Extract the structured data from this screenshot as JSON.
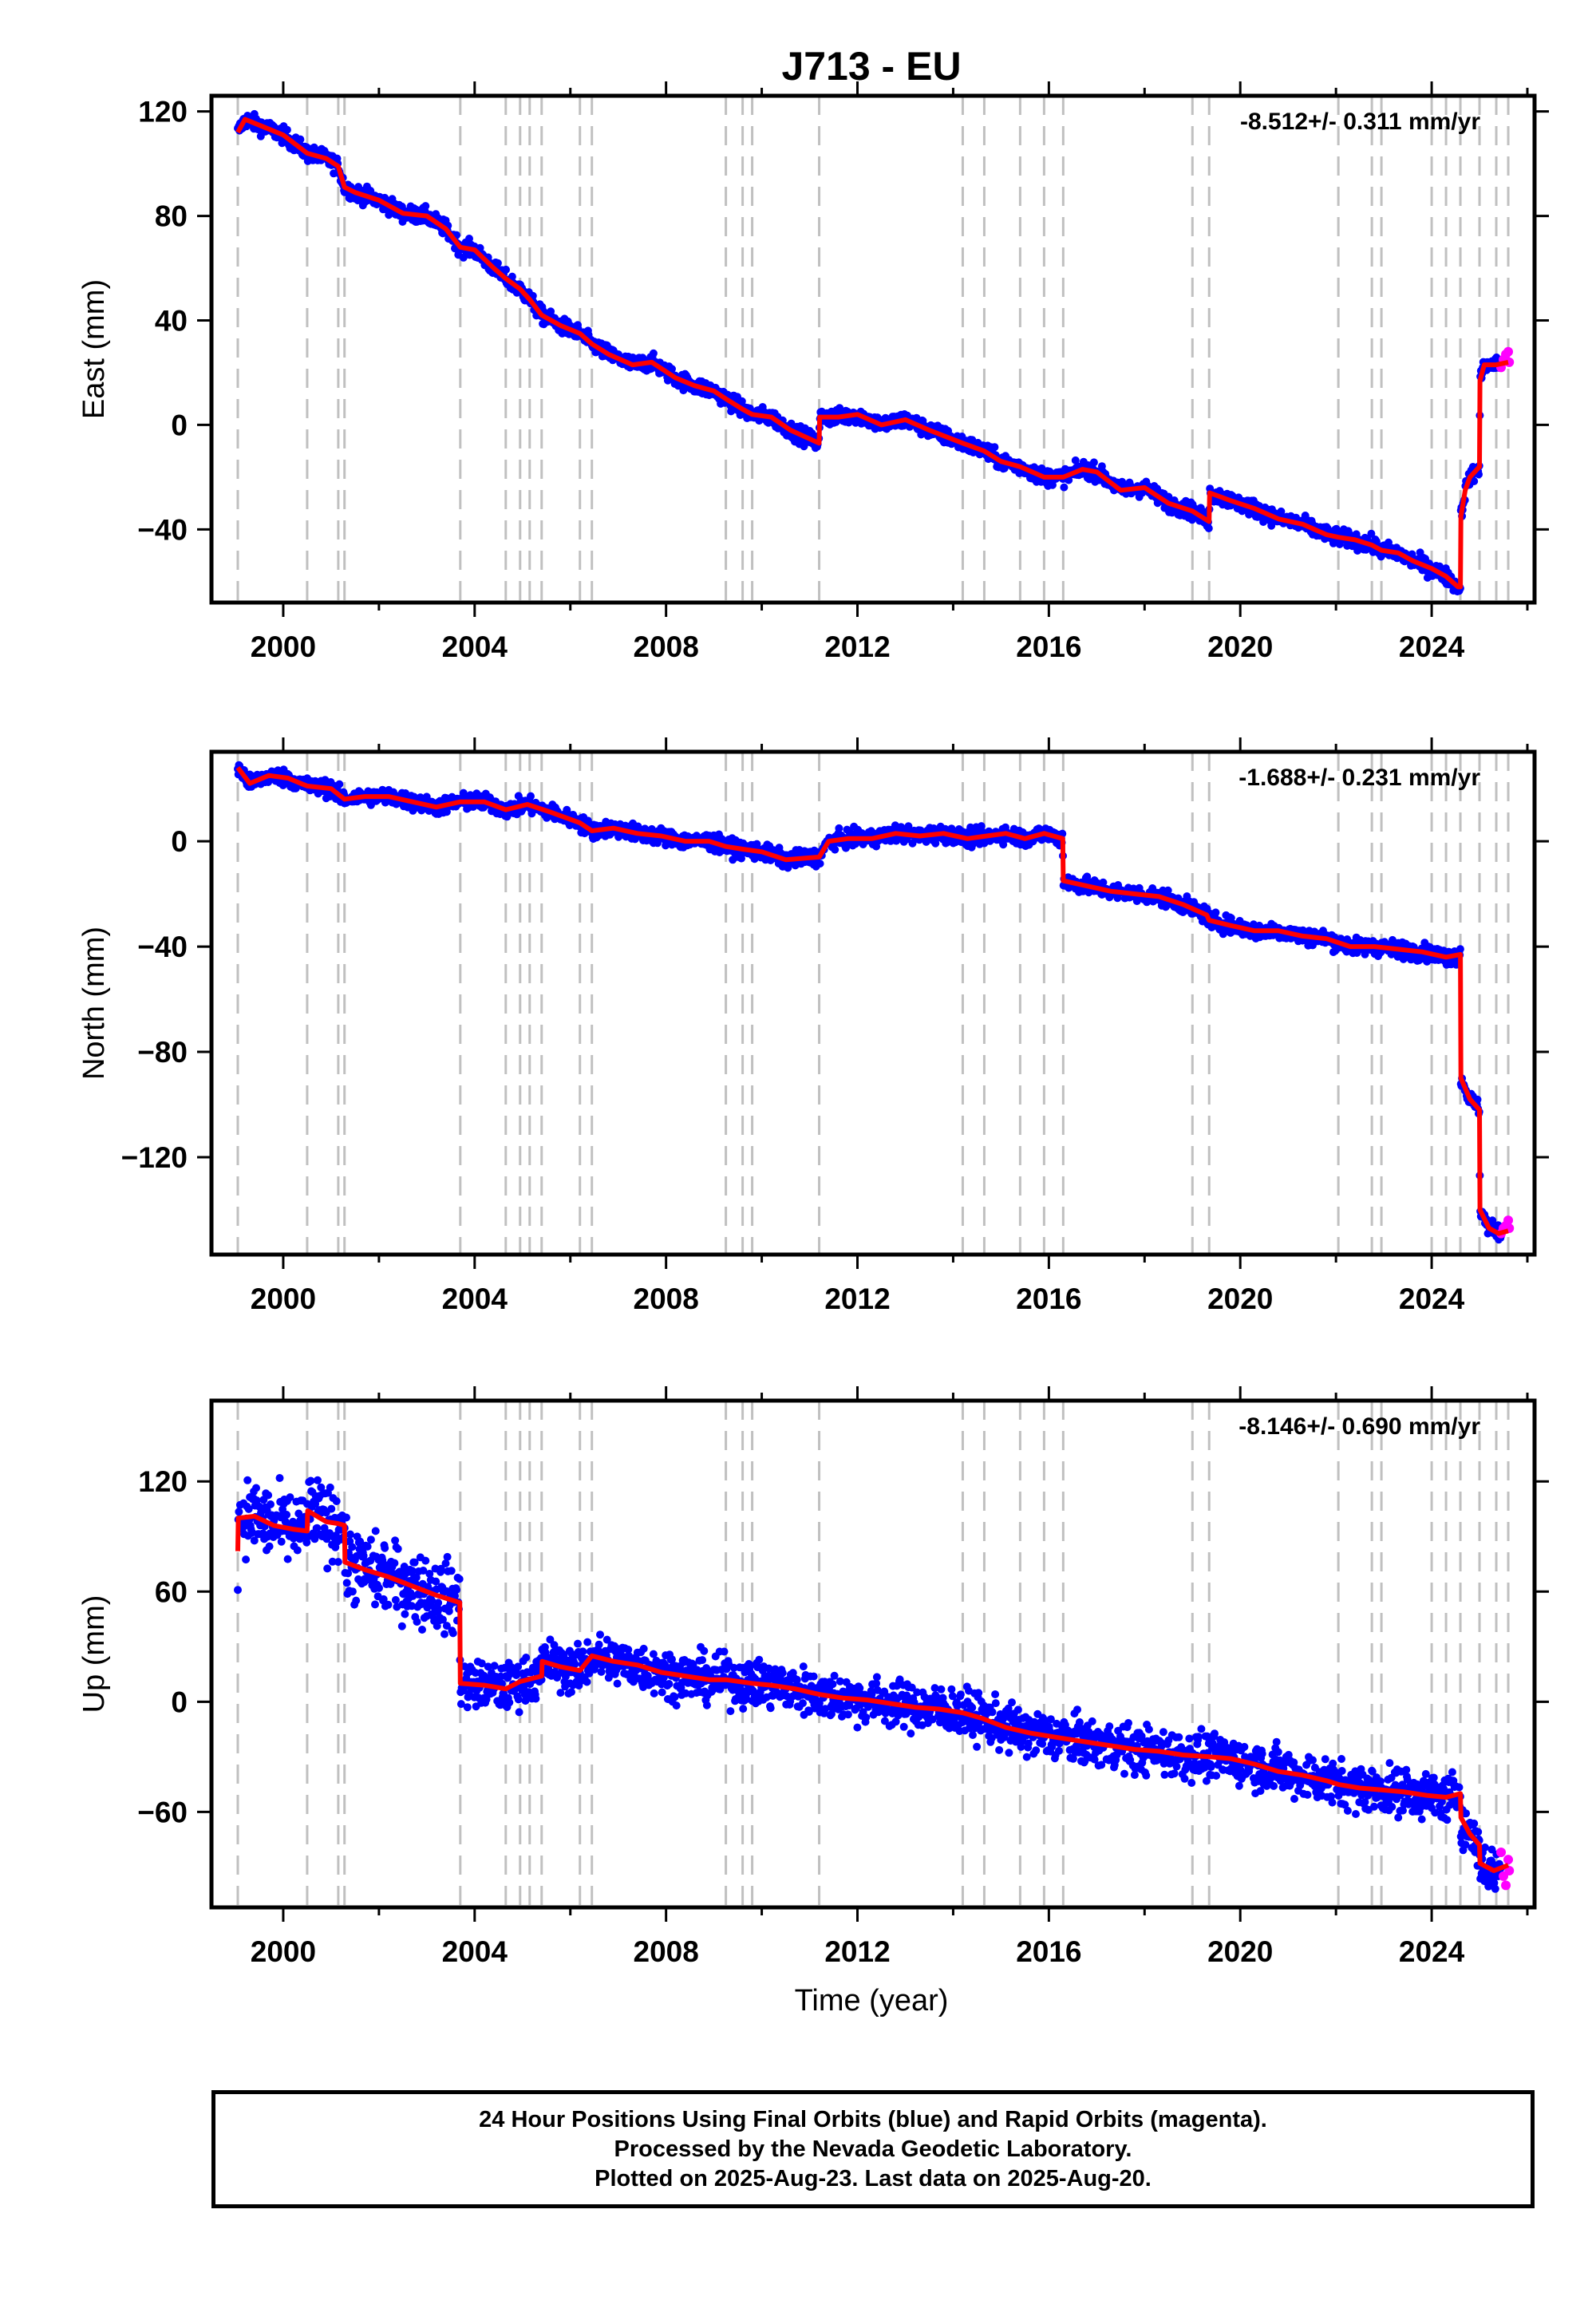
{
  "title": "J713 - EU",
  "xlabel": "Time (year)",
  "caption": {
    "line1": "24 Hour Positions Using Final Orbits (blue) and Rapid Orbits (magenta).",
    "line2": "Processed by the Nevada Geodetic Laboratory.",
    "line3": "Plotted on 2025-Aug-23. Last data on 2025-Aug-20."
  },
  "colors": {
    "final_orbits": "#0000ff",
    "rapid_orbits": "#ff00ff",
    "model": "#ff0000",
    "event_lines": "#c0c0c0"
  },
  "event_years": [
    1999.05,
    2000.5,
    2001.15,
    2001.28,
    2003.7,
    2004.65,
    2004.95,
    2005.15,
    2005.4,
    2006.2,
    2006.45,
    2009.25,
    2009.6,
    2009.8,
    2011.2,
    2014.2,
    2014.65,
    2015.4,
    2015.9,
    2016.3,
    2019.0,
    2019.35,
    2022.05,
    2022.75,
    2022.95,
    2024.0,
    2024.3,
    2024.6,
    2025.0,
    2025.35,
    2025.6
  ],
  "chart_data": [
    {
      "type": "scatter",
      "ylabel": "East (mm)",
      "rate_label": "-8.512+/- 0.311 mm/yr",
      "xlim": [
        1998.5,
        2026.15
      ],
      "ylim": [
        -68,
        126
      ],
      "yticks": [
        120,
        80,
        40,
        0,
        -40
      ],
      "ytick_labels": [
        "120",
        "80",
        "40",
        "0",
        "−40"
      ],
      "xticks": [
        2000,
        2004,
        2008,
        2012,
        2016,
        2020,
        2024
      ],
      "xtick_labels": [
        "2000",
        "2004",
        "2008",
        "2012",
        "2016",
        "2020",
        "2024"
      ],
      "model": [
        [
          1999.05,
          112
        ],
        [
          1999.2,
          117
        ],
        [
          1999.6,
          114
        ],
        [
          2000.0,
          111
        ],
        [
          2000.5,
          104
        ],
        [
          2000.9,
          102
        ],
        [
          2001.15,
          99
        ],
        [
          2001.28,
          91
        ],
        [
          2001.5,
          89
        ],
        [
          2002.0,
          86
        ],
        [
          2002.5,
          81
        ],
        [
          2003.0,
          80
        ],
        [
          2003.4,
          75
        ],
        [
          2003.7,
          68
        ],
        [
          2004.0,
          67
        ],
        [
          2004.4,
          60
        ],
        [
          2004.65,
          56
        ],
        [
          2004.95,
          52
        ],
        [
          2005.15,
          48
        ],
        [
          2005.4,
          42
        ],
        [
          2005.8,
          38
        ],
        [
          2006.2,
          35
        ],
        [
          2006.45,
          31
        ],
        [
          2006.8,
          27
        ],
        [
          2007.3,
          23
        ],
        [
          2007.7,
          24
        ],
        [
          2008.2,
          18
        ],
        [
          2008.6,
          15
        ],
        [
          2009.0,
          13
        ],
        [
          2009.25,
          10
        ],
        [
          2009.6,
          6
        ],
        [
          2009.8,
          4
        ],
        [
          2010.2,
          3
        ],
        [
          2010.6,
          -2
        ],
        [
          2011.2,
          -7
        ],
        [
          2011.21,
          3
        ],
        [
          2011.6,
          3
        ],
        [
          2012.0,
          4
        ],
        [
          2012.5,
          0
        ],
        [
          2013.0,
          2
        ],
        [
          2013.5,
          -2
        ],
        [
          2014.2,
          -7
        ],
        [
          2014.65,
          -10
        ],
        [
          2015.0,
          -14
        ],
        [
          2015.4,
          -16
        ],
        [
          2015.9,
          -20
        ],
        [
          2016.3,
          -20
        ],
        [
          2016.7,
          -17
        ],
        [
          2017.0,
          -18
        ],
        [
          2017.5,
          -25
        ],
        [
          2018.0,
          -24
        ],
        [
          2018.5,
          -30
        ],
        [
          2019.0,
          -33
        ],
        [
          2019.35,
          -37
        ],
        [
          2019.36,
          -26
        ],
        [
          2019.8,
          -29
        ],
        [
          2020.3,
          -32
        ],
        [
          2020.8,
          -36
        ],
        [
          2021.3,
          -38
        ],
        [
          2021.8,
          -42
        ],
        [
          2022.05,
          -43
        ],
        [
          2022.4,
          -44
        ],
        [
          2022.75,
          -46
        ],
        [
          2022.95,
          -48
        ],
        [
          2023.3,
          -49
        ],
        [
          2023.6,
          -52
        ],
        [
          2024.0,
          -55
        ],
        [
          2024.3,
          -58
        ],
        [
          2024.55,
          -62
        ],
        [
          2024.6,
          -62
        ],
        [
          2024.61,
          -35
        ],
        [
          2024.7,
          -25
        ],
        [
          2024.8,
          -20
        ],
        [
          2025.0,
          -16
        ],
        [
          2025.01,
          17
        ],
        [
          2025.1,
          23
        ],
        [
          2025.35,
          23
        ],
        [
          2025.6,
          24
        ]
      ],
      "rapid": [
        [
          2025.45,
          22
        ],
        [
          2025.5,
          25
        ],
        [
          2025.55,
          27
        ],
        [
          2025.6,
          28
        ],
        [
          2025.62,
          24
        ]
      ]
    },
    {
      "type": "scatter",
      "ylabel": "North (mm)",
      "rate_label": "-1.688+/- 0.231 mm/yr",
      "xlim": [
        1998.5,
        2026.15
      ],
      "ylim": [
        -157,
        34
      ],
      "yticks": [
        0,
        -40,
        -80,
        -120
      ],
      "ytick_labels": [
        "0",
        "−40",
        "−80",
        "−120"
      ],
      "xticks": [
        2000,
        2004,
        2008,
        2012,
        2016,
        2020,
        2024
      ],
      "xtick_labels": [
        "2000",
        "2004",
        "2008",
        "2012",
        "2016",
        "2020",
        "2024"
      ],
      "model": [
        [
          1999.05,
          28
        ],
        [
          1999.3,
          22
        ],
        [
          1999.7,
          25
        ],
        [
          2000.1,
          24
        ],
        [
          2000.5,
          21
        ],
        [
          2001.0,
          20
        ],
        [
          2001.28,
          16
        ],
        [
          2001.7,
          17
        ],
        [
          2002.2,
          17
        ],
        [
          2002.7,
          15
        ],
        [
          2003.2,
          13
        ],
        [
          2003.7,
          15
        ],
        [
          2004.2,
          15
        ],
        [
          2004.65,
          12
        ],
        [
          2005.1,
          14
        ],
        [
          2005.6,
          11
        ],
        [
          2006.2,
          7
        ],
        [
          2006.45,
          4
        ],
        [
          2006.9,
          5
        ],
        [
          2007.4,
          3
        ],
        [
          2007.9,
          2
        ],
        [
          2008.4,
          0
        ],
        [
          2008.9,
          0
        ],
        [
          2009.25,
          -2
        ],
        [
          2009.6,
          -3
        ],
        [
          2010.0,
          -4
        ],
        [
          2010.5,
          -7
        ],
        [
          2011.2,
          -6
        ],
        [
          2011.4,
          0
        ],
        [
          2011.8,
          1
        ],
        [
          2012.3,
          1
        ],
        [
          2012.8,
          3
        ],
        [
          2013.3,
          2
        ],
        [
          2013.8,
          3
        ],
        [
          2014.3,
          1
        ],
        [
          2014.7,
          2
        ],
        [
          2015.1,
          3
        ],
        [
          2015.5,
          1
        ],
        [
          2015.9,
          3
        ],
        [
          2016.29,
          1
        ],
        [
          2016.3,
          -15
        ],
        [
          2016.8,
          -17
        ],
        [
          2017.3,
          -19
        ],
        [
          2017.8,
          -20
        ],
        [
          2018.3,
          -21
        ],
        [
          2018.8,
          -24
        ],
        [
          2019.3,
          -28
        ],
        [
          2019.35,
          -30
        ],
        [
          2019.8,
          -32
        ],
        [
          2020.3,
          -34
        ],
        [
          2020.8,
          -34
        ],
        [
          2021.3,
          -36
        ],
        [
          2021.8,
          -37
        ],
        [
          2022.3,
          -40
        ],
        [
          2022.8,
          -40
        ],
        [
          2023.3,
          -41
        ],
        [
          2023.8,
          -42
        ],
        [
          2024.3,
          -44
        ],
        [
          2024.6,
          -43
        ],
        [
          2024.61,
          -90
        ],
        [
          2024.8,
          -98
        ],
        [
          2025.0,
          -102
        ],
        [
          2025.01,
          -140
        ],
        [
          2025.2,
          -147
        ],
        [
          2025.4,
          -149
        ],
        [
          2025.6,
          -148
        ]
      ],
      "rapid": [
        [
          2025.45,
          -149
        ],
        [
          2025.5,
          -147
        ],
        [
          2025.55,
          -146
        ],
        [
          2025.6,
          -144
        ],
        [
          2025.62,
          -147
        ]
      ]
    },
    {
      "type": "scatter",
      "ylabel": "Up (mm)",
      "xlabel": "Time (year)",
      "rate_label": "-8.146+/- 0.690 mm/yr",
      "xlim": [
        1998.5,
        2026.15
      ],
      "ylim": [
        -112,
        164
      ],
      "yticks": [
        120,
        60,
        0,
        -60
      ],
      "ytick_labels": [
        "120",
        "60",
        "0",
        "−60"
      ],
      "xticks": [
        2000,
        2004,
        2008,
        2012,
        2016,
        2020,
        2024
      ],
      "xtick_labels": [
        "2000",
        "2004",
        "2008",
        "2012",
        "2016",
        "2020",
        "2024"
      ],
      "model": [
        [
          1999.05,
          82
        ],
        [
          1999.06,
          100
        ],
        [
          1999.4,
          101
        ],
        [
          1999.8,
          96
        ],
        [
          2000.2,
          94
        ],
        [
          2000.5,
          93
        ],
        [
          2000.51,
          104
        ],
        [
          2000.9,
          98
        ],
        [
          2001.15,
          97
        ],
        [
          2001.28,
          96
        ],
        [
          2001.29,
          76
        ],
        [
          2001.7,
          72
        ],
        [
          2002.2,
          68
        ],
        [
          2002.7,
          63
        ],
        [
          2003.2,
          58
        ],
        [
          2003.69,
          54
        ],
        [
          2003.7,
          10
        ],
        [
          2004.2,
          9
        ],
        [
          2004.65,
          7
        ],
        [
          2004.95,
          11
        ],
        [
          2005.4,
          14
        ],
        [
          2005.41,
          22
        ],
        [
          2005.8,
          19
        ],
        [
          2006.2,
          17
        ],
        [
          2006.45,
          25
        ],
        [
          2006.9,
          22
        ],
        [
          2007.4,
          20
        ],
        [
          2007.9,
          16
        ],
        [
          2008.4,
          14
        ],
        [
          2008.9,
          12
        ],
        [
          2009.25,
          12
        ],
        [
          2009.8,
          10
        ],
        [
          2010.2,
          9
        ],
        [
          2010.7,
          7
        ],
        [
          2011.2,
          4
        ],
        [
          2011.7,
          2
        ],
        [
          2012.2,
          1
        ],
        [
          2012.7,
          -1
        ],
        [
          2013.2,
          -3
        ],
        [
          2013.7,
          -4
        ],
        [
          2014.2,
          -6
        ],
        [
          2014.6,
          -9
        ],
        [
          2015.1,
          -14
        ],
        [
          2015.6,
          -17
        ],
        [
          2016.3,
          -20
        ],
        [
          2016.8,
          -22
        ],
        [
          2017.3,
          -24
        ],
        [
          2017.8,
          -26
        ],
        [
          2018.3,
          -27
        ],
        [
          2018.8,
          -29
        ],
        [
          2019.35,
          -30
        ],
        [
          2019.8,
          -31
        ],
        [
          2020.3,
          -34
        ],
        [
          2020.8,
          -38
        ],
        [
          2021.3,
          -40
        ],
        [
          2021.8,
          -43
        ],
        [
          2022.05,
          -45
        ],
        [
          2022.5,
          -47
        ],
        [
          2022.95,
          -48
        ],
        [
          2023.4,
          -49
        ],
        [
          2023.9,
          -51
        ],
        [
          2024.3,
          -52
        ],
        [
          2024.6,
          -50
        ],
        [
          2024.61,
          -63
        ],
        [
          2024.8,
          -72
        ],
        [
          2025.0,
          -78
        ],
        [
          2025.01,
          -88
        ],
        [
          2025.3,
          -92
        ],
        [
          2025.6,
          -89
        ]
      ],
      "rapid": [
        [
          2025.45,
          -82
        ],
        [
          2025.5,
          -95
        ],
        [
          2025.55,
          -100
        ],
        [
          2025.6,
          -86
        ],
        [
          2025.62,
          -92
        ]
      ]
    }
  ]
}
